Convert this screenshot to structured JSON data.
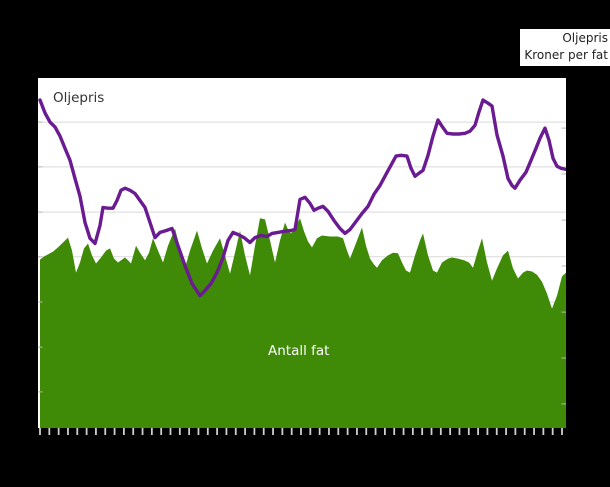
{
  "legend": {
    "line1": "Oljepris",
    "line2": "Kroner per fat"
  },
  "labels": {
    "oil_price": "Oljepris",
    "barrels": "Antall fat"
  },
  "colors": {
    "background": "#000000",
    "plot_background": "#ffffff",
    "gridline": "#d9d9d9",
    "edge_tick": "#b8b8b8",
    "x_tick": "#d0d0d0",
    "oil_price_line": "#6a1b91",
    "barrels_fill": "#3f8a06",
    "label_dark": "#333333",
    "label_light": "#ffffff"
  },
  "chart_data": {
    "type": "area+line",
    "title": "",
    "xlabel": "",
    "ylabel": "",
    "x_unit": "pixels from plot left edge (0-528); no x tick labels visible",
    "y_unit": "percent of plot height (0-100); no y tick labels visible",
    "x_axis": {
      "tick_count": 57,
      "labels_visible": false
    },
    "y_axis": {
      "labels_visible": false,
      "range": [
        0,
        100
      ],
      "gridline_values": [
        87.4,
        74.6,
        61.7,
        48.9,
        36.0,
        23.1,
        10.3
      ],
      "right_tick_values": [
        85.7,
        72.6,
        59.4,
        46.3,
        33.1,
        20.0,
        6.9
      ]
    },
    "legend_position": "top-right, outside plot",
    "grid": true,
    "series": [
      {
        "name": "Antall fat",
        "type": "area",
        "color": "#3f8a06",
        "points": [
          [
            2,
            48.1
          ],
          [
            6,
            49.0
          ],
          [
            10,
            49.6
          ],
          [
            15,
            50.4
          ],
          [
            20,
            51.6
          ],
          [
            25,
            53.0
          ],
          [
            30,
            54.4
          ],
          [
            34,
            50.7
          ],
          [
            38,
            44.4
          ],
          [
            42,
            47.3
          ],
          [
            46,
            51.3
          ],
          [
            50,
            52.7
          ],
          [
            54,
            49.3
          ],
          [
            58,
            47.0
          ],
          [
            63,
            48.7
          ],
          [
            68,
            50.7
          ],
          [
            72,
            51.3
          ],
          [
            76,
            48.4
          ],
          [
            80,
            47.3
          ],
          [
            84,
            48.1
          ],
          [
            87,
            48.7
          ],
          [
            90,
            47.9
          ],
          [
            93,
            47.0
          ],
          [
            98,
            52.1
          ],
          [
            102,
            50.1
          ],
          [
            107,
            47.9
          ],
          [
            111,
            50.1
          ],
          [
            115,
            54.2
          ],
          [
            120,
            50.7
          ],
          [
            125,
            47.3
          ],
          [
            130,
            52.1
          ],
          [
            137,
            57.0
          ],
          [
            142,
            51.3
          ],
          [
            147,
            45.8
          ],
          [
            152,
            50.7
          ],
          [
            159,
            56.4
          ],
          [
            164,
            51.3
          ],
          [
            169,
            47.0
          ],
          [
            175,
            50.7
          ],
          [
            182,
            54.2
          ],
          [
            187,
            49.3
          ],
          [
            192,
            44.1
          ],
          [
            197,
            50.1
          ],
          [
            202,
            56.4
          ],
          [
            207,
            49.3
          ],
          [
            212,
            43.6
          ],
          [
            217,
            52.1
          ],
          [
            222,
            59.9
          ],
          [
            227,
            59.6
          ],
          [
            232,
            53.6
          ],
          [
            237,
            47.3
          ],
          [
            242,
            53.6
          ],
          [
            247,
            58.7
          ],
          [
            250,
            56.7
          ],
          [
            253,
            55.6
          ],
          [
            257,
            57.3
          ],
          [
            262,
            59.9
          ],
          [
            266,
            56.2
          ],
          [
            270,
            53.3
          ],
          [
            274,
            51.6
          ],
          [
            279,
            54.2
          ],
          [
            284,
            55.0
          ],
          [
            292,
            54.7
          ],
          [
            300,
            54.7
          ],
          [
            305,
            54.2
          ],
          [
            309,
            50.7
          ],
          [
            312,
            48.4
          ],
          [
            317,
            52.1
          ],
          [
            324,
            57.3
          ],
          [
            328,
            52.1
          ],
          [
            332,
            48.4
          ],
          [
            336,
            46.7
          ],
          [
            339,
            45.8
          ],
          [
            344,
            47.9
          ],
          [
            350,
            49.3
          ],
          [
            355,
            50.1
          ],
          [
            360,
            49.9
          ],
          [
            364,
            47.3
          ],
          [
            368,
            45.0
          ],
          [
            372,
            44.4
          ],
          [
            377,
            49.3
          ],
          [
            382,
            53.6
          ],
          [
            385,
            55.6
          ],
          [
            390,
            49.3
          ],
          [
            395,
            45.0
          ],
          [
            399,
            44.4
          ],
          [
            404,
            47.3
          ],
          [
            410,
            48.4
          ],
          [
            414,
            48.7
          ],
          [
            420,
            48.4
          ],
          [
            426,
            47.9
          ],
          [
            431,
            47.3
          ],
          [
            435,
            45.8
          ],
          [
            440,
            50.7
          ],
          [
            444,
            54.2
          ],
          [
            449,
            47.3
          ],
          [
            454,
            42.1
          ],
          [
            459,
            45.6
          ],
          [
            465,
            49.3
          ],
          [
            470,
            50.7
          ],
          [
            475,
            45.6
          ],
          [
            480,
            42.7
          ],
          [
            485,
            44.4
          ],
          [
            489,
            45.0
          ],
          [
            494,
            44.7
          ],
          [
            499,
            43.8
          ],
          [
            504,
            41.8
          ],
          [
            509,
            38.4
          ],
          [
            514,
            34.1
          ],
          [
            519,
            37.8
          ],
          [
            524,
            43.3
          ],
          [
            528,
            44.4
          ]
        ]
      },
      {
        "name": "Oljepris",
        "type": "line",
        "color": "#6a1b91",
        "points": [
          [
            2,
            93.7
          ],
          [
            7,
            90.0
          ],
          [
            12,
            87.4
          ],
          [
            17,
            86.0
          ],
          [
            22,
            83.4
          ],
          [
            27,
            79.9
          ],
          [
            32,
            76.5
          ],
          [
            37,
            71.3
          ],
          [
            42,
            66.2
          ],
          [
            47,
            58.7
          ],
          [
            52,
            54.2
          ],
          [
            57,
            52.7
          ],
          [
            62,
            57.9
          ],
          [
            65,
            63.0
          ],
          [
            70,
            62.8
          ],
          [
            75,
            62.8
          ],
          [
            79,
            65.0
          ],
          [
            83,
            67.9
          ],
          [
            87,
            68.5
          ],
          [
            92,
            67.9
          ],
          [
            97,
            67.0
          ],
          [
            102,
            65.0
          ],
          [
            107,
            63.0
          ],
          [
            112,
            58.7
          ],
          [
            117,
            54.4
          ],
          [
            122,
            55.9
          ],
          [
            128,
            56.4
          ],
          [
            134,
            57.0
          ],
          [
            140,
            52.1
          ],
          [
            147,
            46.4
          ],
          [
            154,
            41.3
          ],
          [
            162,
            37.8
          ],
          [
            167,
            39.3
          ],
          [
            173,
            41.3
          ],
          [
            179,
            44.4
          ],
          [
            185,
            48.7
          ],
          [
            190,
            53.6
          ],
          [
            195,
            55.9
          ],
          [
            200,
            55.3
          ],
          [
            206,
            54.4
          ],
          [
            212,
            53.0
          ],
          [
            217,
            54.4
          ],
          [
            223,
            55.0
          ],
          [
            229,
            54.7
          ],
          [
            234,
            55.6
          ],
          [
            240,
            55.9
          ],
          [
            246,
            56.2
          ],
          [
            252,
            56.4
          ],
          [
            257,
            56.7
          ],
          [
            262,
            65.3
          ],
          [
            267,
            65.9
          ],
          [
            272,
            64.2
          ],
          [
            276,
            62.2
          ],
          [
            280,
            62.8
          ],
          [
            285,
            63.3
          ],
          [
            290,
            61.9
          ],
          [
            296,
            59.3
          ],
          [
            302,
            57.0
          ],
          [
            307,
            55.6
          ],
          [
            312,
            56.7
          ],
          [
            318,
            59.0
          ],
          [
            324,
            61.3
          ],
          [
            330,
            63.3
          ],
          [
            336,
            66.8
          ],
          [
            342,
            69.3
          ],
          [
            348,
            72.5
          ],
          [
            353,
            75.1
          ],
          [
            358,
            77.7
          ],
          [
            363,
            77.9
          ],
          [
            369,
            77.7
          ],
          [
            373,
            74.2
          ],
          [
            377,
            71.9
          ],
          [
            381,
            72.8
          ],
          [
            385,
            73.6
          ],
          [
            390,
            77.9
          ],
          [
            395,
            83.4
          ],
          [
            400,
            88.0
          ],
          [
            404,
            86.2
          ],
          [
            409,
            84.2
          ],
          [
            415,
            84.0
          ],
          [
            421,
            84.0
          ],
          [
            427,
            84.2
          ],
          [
            432,
            84.8
          ],
          [
            437,
            86.5
          ],
          [
            441,
            90.3
          ],
          [
            445,
            93.7
          ],
          [
            450,
            92.8
          ],
          [
            454,
            92.0
          ],
          [
            459,
            83.7
          ],
          [
            465,
            77.7
          ],
          [
            470,
            71.3
          ],
          [
            474,
            69.3
          ],
          [
            477,
            68.5
          ],
          [
            482,
            70.8
          ],
          [
            488,
            73.1
          ],
          [
            493,
            76.5
          ],
          [
            498,
            79.9
          ],
          [
            502,
            82.8
          ],
          [
            507,
            85.7
          ],
          [
            511,
            82.2
          ],
          [
            515,
            77.1
          ],
          [
            519,
            74.8
          ],
          [
            523,
            74.2
          ],
          [
            528,
            73.9
          ]
        ]
      }
    ]
  }
}
